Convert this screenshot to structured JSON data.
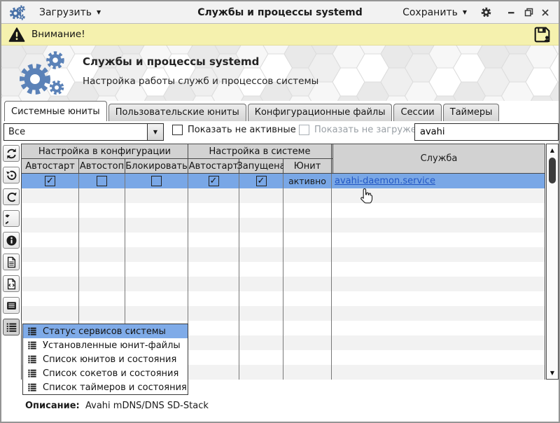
{
  "window": {
    "title": "Службы и процессы systemd",
    "load_button": "Загрузить",
    "save_button": "Сохранить"
  },
  "warning_bar": {
    "text": "Внимание!"
  },
  "banner": {
    "title": "Службы и процессы systemd",
    "subtitle": "Настройка работы служб и процессов системы"
  },
  "tabs": [
    {
      "label": "Системные юниты",
      "active": true
    },
    {
      "label": "Пользовательские юниты",
      "active": false
    },
    {
      "label": "Конфигурационные файлы",
      "active": false
    },
    {
      "label": "Сессии",
      "active": false
    },
    {
      "label": "Таймеры",
      "active": false
    }
  ],
  "filters": {
    "combo_value": "Все",
    "checkbox_inactive_label": "Показать не активные",
    "checkbox_inactive_checked": false,
    "checkbox_unloaded_label": "Показать не загруженные",
    "checkbox_unloaded_checked": false,
    "checkbox_unloaded_disabled": true,
    "search_value": "avahi"
  },
  "toolbar": {
    "buttons": [
      {
        "icon": "refresh-icon",
        "pressed": false
      },
      {
        "icon": "history-icon",
        "pressed": false
      },
      {
        "icon": "redo-icon",
        "pressed": false
      },
      {
        "icon": "undo-icon",
        "pressed": false
      },
      {
        "icon": "info-icon",
        "pressed": false
      },
      {
        "icon": "file-icon",
        "pressed": false
      },
      {
        "icon": "source-file-icon",
        "pressed": false
      },
      {
        "icon": "list-view-icon",
        "pressed": false
      },
      {
        "icon": "status-list-icon",
        "pressed": true
      }
    ]
  },
  "table": {
    "group_headers": [
      "Настройка в конфигурации",
      "Настройка в системе",
      "Служба"
    ],
    "sub_headers": [
      "Автостарт",
      "Автостоп",
      "Блокировать",
      "Автостарт",
      "Запущена",
      "Юнит"
    ],
    "rows": [
      {
        "checks": [
          true,
          false,
          false,
          true,
          true
        ],
        "unit_state": "активно",
        "service": "avahi-daemon.service",
        "selected": true
      }
    ],
    "empty_row_count": 13
  },
  "context_menu": {
    "items": [
      "Статус сервисов системы",
      "Установленные юнит-файлы",
      "Список юнитов и состояния",
      "Список сокетов и состояния",
      "Список таймеров и состояния"
    ],
    "selected_index": 0
  },
  "description": {
    "label": "Описание:",
    "value": "Avahi mDNS/DNS SD-Stack"
  },
  "icons": {
    "caret_down": "▼",
    "check": "✓",
    "scroll_up": "▲",
    "scroll_down": "▼"
  },
  "colors": {
    "warning_bg": "#f5f1ae",
    "selection_blue": "#79a7e6",
    "menu_highlight": "#7fabe8",
    "logo_blue": "#5b82b8",
    "link_blue": "#2257c4",
    "header_gray": "#d2d2d2"
  }
}
